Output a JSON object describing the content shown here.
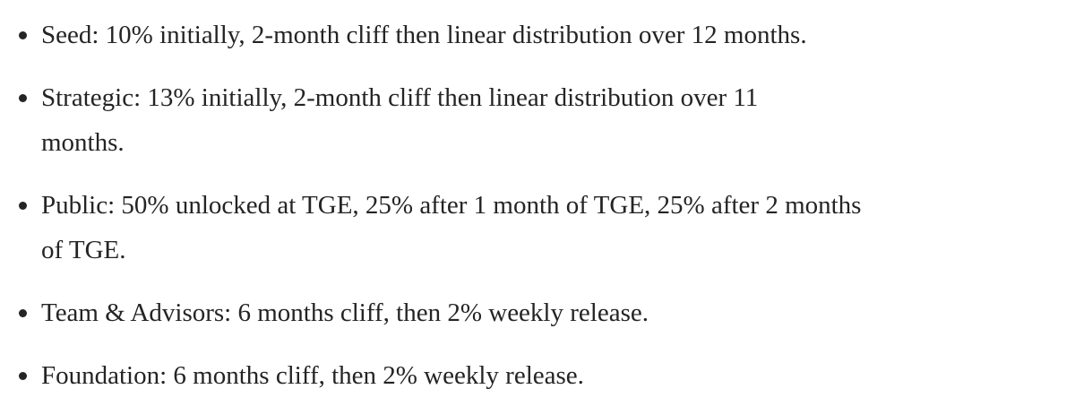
{
  "page": {
    "background_color": "#ffffff",
    "text_color": "#242424",
    "bullet_color": "#242424"
  },
  "bullet_list": {
    "items": [
      {
        "name": "seed",
        "lines": [
          "Seed: 10% initially, 2-month cliff then linear distribution over 12 months."
        ]
      },
      {
        "name": "strategic",
        "lines": [
          "Strategic: 13% initially, 2-month cliff then linear distribution over 11",
          "months."
        ]
      },
      {
        "name": "public",
        "lines": [
          "Public: 50% unlocked at TGE, 25% after 1 month of TGE, 25% after 2 months",
          "of TGE."
        ]
      },
      {
        "name": "team-advisors",
        "lines": [
          "Team & Advisors: 6 months cliff, then 2% weekly release."
        ]
      },
      {
        "name": "foundation",
        "lines": [
          "Foundation: 6 months cliff, then 2% weekly release."
        ]
      }
    ]
  }
}
